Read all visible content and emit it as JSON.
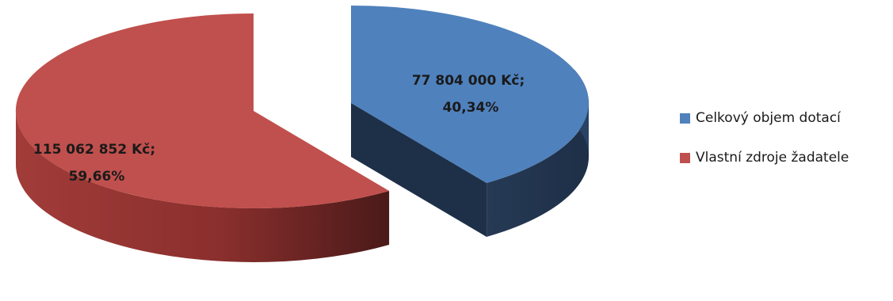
{
  "chart_data": {
    "type": "pie",
    "style": "3d-exploded",
    "series": [
      {
        "name": "Celkový objem dotací",
        "value": 77804000,
        "percent": 40.34,
        "label_line1": "77 804 000 Kč;",
        "label_line2": "40,34%",
        "color": "#4f81bd"
      },
      {
        "name": "Vlastní zdroje žadatele",
        "value": 115062852,
        "percent": 59.66,
        "label_line1": "115 062 852 Kč;",
        "label_line2": "59,66%",
        "color": "#c0504d"
      }
    ],
    "legend_position": "right"
  }
}
